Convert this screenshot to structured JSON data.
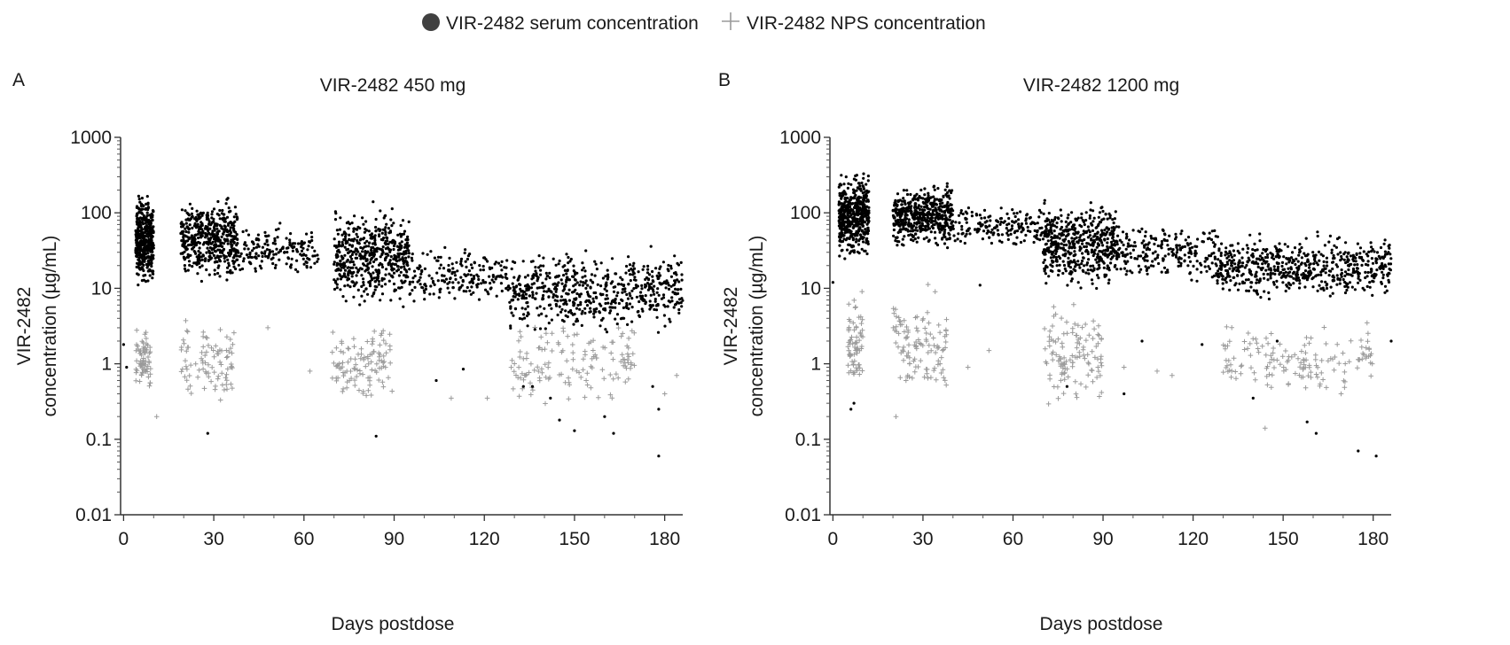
{
  "legend": {
    "placement": "top-center",
    "items": [
      {
        "label": "VIR-2482 serum concentration",
        "marker": "filled-circle",
        "color": "#000000"
      },
      {
        "label": "VIR-2482 NPS concentration",
        "marker": "plus",
        "color": "#9a9a9a"
      }
    ]
  },
  "chart_data": [
    {
      "type": "scatter",
      "panel_label": "A",
      "title": "VIR-2482 450 mg",
      "xlabel": "Days postdose",
      "ylabel_lines": [
        "VIR-2482",
        "concentration (µg/mL)"
      ],
      "y_scale": "log",
      "xlim": [
        -1,
        186
      ],
      "ylim": [
        0.01,
        1000
      ],
      "x_ticks": [
        0,
        30,
        60,
        90,
        120,
        150,
        180
      ],
      "y_ticks": [
        0.01,
        0.1,
        1,
        10,
        100,
        1000
      ],
      "y_tick_labels": [
        "0.01",
        "0.1",
        "1",
        "10",
        "100",
        "1000"
      ],
      "grid": false,
      "series": [
        {
          "name": "VIR-2482 serum concentration",
          "color": "#000000",
          "clusters": [
            {
              "x": [
                4,
                10
              ],
              "y_range": [
                8,
                220
              ],
              "n": 420
            },
            {
              "x": [
                19,
                38
              ],
              "y_range": [
                10,
                200
              ],
              "n": 480
            },
            {
              "x": [
                38,
                65
              ],
              "y_range": [
                12,
                80
              ],
              "n": 170
            },
            {
              "x": [
                70,
                95
              ],
              "y_range": [
                5,
                140
              ],
              "n": 520
            },
            {
              "x": [
                95,
                128
              ],
              "y_range": [
                5,
                40
              ],
              "n": 200
            },
            {
              "x": [
                128,
                186
              ],
              "y_range": [
                2,
                40
              ],
              "n": 600
            }
          ],
          "outliers": [
            [
              0,
              1.8
            ],
            [
              1,
              0.9
            ],
            [
              28,
              0.12
            ],
            [
              84,
              0.11
            ],
            [
              83,
              140
            ],
            [
              104,
              0.6
            ],
            [
              113,
              0.85
            ],
            [
              142,
              0.35
            ],
            [
              145,
              0.18
            ],
            [
              150,
              0.13
            ],
            [
              160,
              0.2
            ],
            [
              163,
              0.12
            ],
            [
              176,
              0.5
            ],
            [
              178,
              0.25
            ],
            [
              178,
              0.06
            ],
            [
              133,
              0.5
            ],
            [
              136,
              0.5
            ]
          ]
        },
        {
          "name": "VIR-2482 NPS concentration",
          "color": "#9a9a9a",
          "clusters": [
            {
              "x": [
                4,
                9
              ],
              "y_range": [
                0.3,
                4
              ],
              "n": 70
            },
            {
              "x": [
                19,
                37
              ],
              "y_range": [
                0.25,
                6
              ],
              "n": 90
            },
            {
              "x": [
                69,
                90
              ],
              "y_range": [
                0.25,
                4
              ],
              "n": 110
            },
            {
              "x": [
                128,
                170
              ],
              "y_range": [
                0.2,
                5
              ],
              "n": 140
            }
          ],
          "outliers": [
            [
              11,
              0.2
            ],
            [
              48,
              3
            ],
            [
              62,
              0.8
            ],
            [
              109,
              0.35
            ],
            [
              121,
              0.35
            ],
            [
              180,
              0.4
            ],
            [
              184,
              0.7
            ]
          ]
        }
      ]
    },
    {
      "type": "scatter",
      "panel_label": "B",
      "title": "VIR-2482 1200 mg",
      "xlabel": "Days postdose",
      "ylabel_lines": [
        "VIR-2482",
        "concentration (µg/mL)"
      ],
      "y_scale": "log",
      "xlim": [
        -1,
        186
      ],
      "ylim": [
        0.01,
        1000
      ],
      "x_ticks": [
        0,
        30,
        60,
        90,
        120,
        150,
        180
      ],
      "y_ticks": [
        0.01,
        0.1,
        1,
        10,
        100,
        1000
      ],
      "y_tick_labels": [
        "0.01",
        "0.1",
        "1",
        "10",
        "100",
        "1000"
      ],
      "grid": false,
      "series": [
        {
          "name": "VIR-2482 serum concentration",
          "color": "#000000",
          "clusters": [
            {
              "x": [
                2,
                12
              ],
              "y_range": [
                20,
                400
              ],
              "n": 500
            },
            {
              "x": [
                20,
                40
              ],
              "y_range": [
                30,
                280
              ],
              "n": 500
            },
            {
              "x": [
                40,
                70
              ],
              "y_range": [
                30,
                150
              ],
              "n": 180
            },
            {
              "x": [
                70,
                95
              ],
              "y_range": [
                8,
                170
              ],
              "n": 520
            },
            {
              "x": [
                95,
                128
              ],
              "y_range": [
                10,
                90
              ],
              "n": 220
            },
            {
              "x": [
                128,
                186
              ],
              "y_range": [
                6,
                60
              ],
              "n": 620
            }
          ],
          "outliers": [
            [
              0,
              12
            ],
            [
              6,
              0.25
            ],
            [
              7,
              0.3
            ],
            [
              49,
              11
            ],
            [
              78,
              0.5
            ],
            [
              97,
              0.4
            ],
            [
              103,
              2
            ],
            [
              123,
              1.8
            ],
            [
              140,
              0.35
            ],
            [
              148,
              2
            ],
            [
              158,
              0.17
            ],
            [
              161,
              0.12
            ],
            [
              175,
              0.07
            ],
            [
              181,
              0.06
            ],
            [
              186,
              2
            ]
          ]
        },
        {
          "name": "VIR-2482 NPS concentration",
          "color": "#9a9a9a",
          "clusters": [
            {
              "x": [
                5,
                10
              ],
              "y_range": [
                0.3,
                10
              ],
              "n": 70
            },
            {
              "x": [
                20,
                38
              ],
              "y_range": [
                0.25,
                12
              ],
              "n": 110
            },
            {
              "x": [
                70,
                90
              ],
              "y_range": [
                0.25,
                8
              ],
              "n": 120
            },
            {
              "x": [
                130,
                180
              ],
              "y_range": [
                0.25,
                5
              ],
              "n": 150
            }
          ],
          "outliers": [
            [
              21,
              0.2
            ],
            [
              45,
              0.9
            ],
            [
              52,
              1.5
            ],
            [
              97,
              0.9
            ],
            [
              108,
              0.8
            ],
            [
              113,
              0.7
            ],
            [
              144,
              0.14
            ]
          ]
        }
      ]
    }
  ]
}
